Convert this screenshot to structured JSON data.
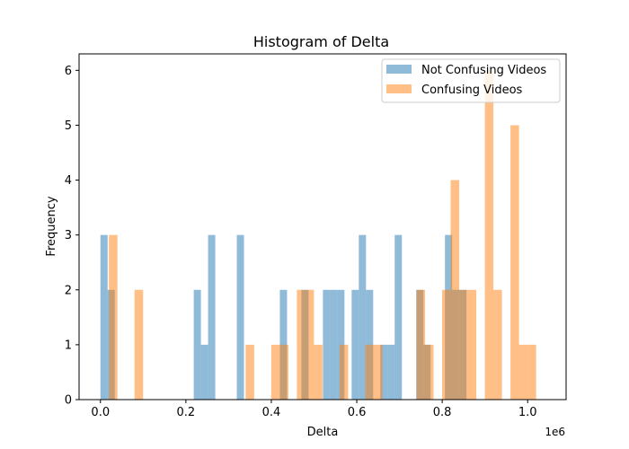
{
  "chart_data": {
    "type": "histogram",
    "title": "Histogram of Delta",
    "xlabel": "Delta",
    "ylabel": "Frequency",
    "x_offset_label": "1e6",
    "xlim": [
      -0.05,
      1.09
    ],
    "ylim": [
      0,
      6.3
    ],
    "xticks": [
      0.0,
      0.2,
      0.4,
      0.6,
      0.8,
      1.0
    ],
    "xtick_labels": [
      "0.0",
      "0.2",
      "0.4",
      "0.6",
      "0.8",
      "1.0"
    ],
    "yticks": [
      0,
      1,
      2,
      3,
      4,
      5,
      6
    ],
    "ytick_labels": [
      "0",
      "1",
      "2",
      "3",
      "4",
      "5",
      "6"
    ],
    "grid": false,
    "legend_position": "top-right",
    "series": [
      {
        "name": "Not Confusing Videos",
        "color": "#1f77b4",
        "opacity": 0.5,
        "bin_start": 0.0,
        "bin_width": 0.0168,
        "counts": [
          3,
          2,
          0,
          0,
          0,
          0,
          0,
          0,
          0,
          0,
          0,
          0,
          0,
          2,
          1,
          3,
          0,
          0,
          0,
          3,
          0,
          0,
          0,
          0,
          0,
          2,
          0,
          0,
          2,
          0,
          0,
          2,
          2,
          2,
          0,
          2,
          3,
          2,
          0,
          1,
          1,
          3,
          0,
          0,
          2,
          1,
          0,
          0,
          3,
          2,
          2
        ]
      },
      {
        "name": "Confusing Videos",
        "color": "#ff7f0e",
        "opacity": 0.5,
        "bin_start": 0.0198,
        "bin_width": 0.02,
        "counts": [
          3,
          0,
          0,
          2,
          0,
          0,
          0,
          0,
          0,
          0,
          0,
          0,
          0,
          0,
          0,
          0,
          1,
          0,
          0,
          1,
          1,
          0,
          2,
          2,
          1,
          0,
          0,
          1,
          0,
          0,
          1,
          1,
          0,
          0,
          0,
          0,
          2,
          1,
          0,
          2,
          4,
          2,
          2,
          0,
          6,
          2,
          0,
          5,
          1,
          1
        ]
      }
    ]
  }
}
